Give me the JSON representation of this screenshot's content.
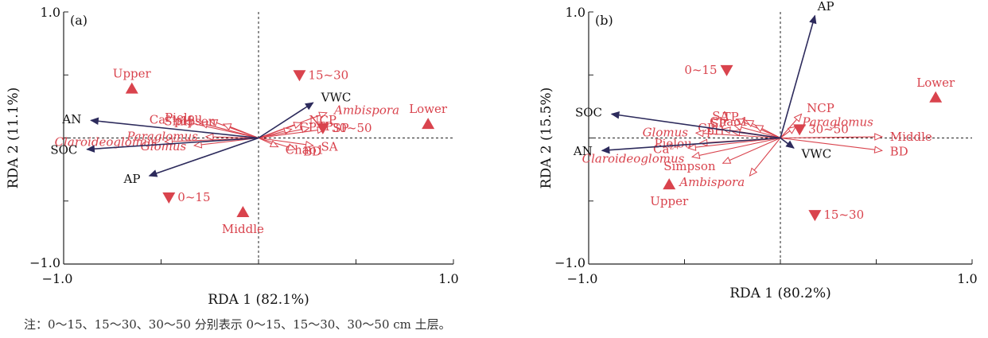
{
  "note": "注：0～15、15～30、30～50 分别表示 0～15、15～30、30～50 cm 土层。",
  "colors": {
    "env": "#2d2b5c",
    "species": "#d9434d",
    "axis": "#222222"
  },
  "chart_data": [
    {
      "type": "scatter",
      "panel_label": "(a)",
      "xlabel": "RDA 1 (82.1%)",
      "ylabel": "RDA 2 (11.1%)",
      "xlim": [
        -1.0,
        1.0
      ],
      "ylim": [
        -1.0,
        1.0
      ],
      "x_tick_labels": [
        "−1.0",
        "1.0"
      ],
      "y_tick_labels": [
        "1.0",
        "−1.0"
      ],
      "env_arrows": [
        {
          "name": "AN",
          "x": -0.86,
          "y": 0.14
        },
        {
          "name": "SOC",
          "x": -0.88,
          "y": -0.09
        },
        {
          "name": "AP",
          "x": -0.56,
          "y": -0.3
        },
        {
          "name": "VWC",
          "x": 0.28,
          "y": 0.28
        }
      ],
      "species_arrows": [
        {
          "name": "Ca²⁺",
          "x": -0.38,
          "y": 0.13,
          "italic": false
        },
        {
          "name": "pH",
          "x": -0.3,
          "y": 0.12,
          "italic": false
        },
        {
          "name": "Pielou",
          "x": -0.25,
          "y": 0.14,
          "italic": false
        },
        {
          "name": "Simpson",
          "x": -0.18,
          "y": 0.11,
          "italic": false
        },
        {
          "name": "Paraglomus",
          "x": -0.27,
          "y": 0.01,
          "italic": true
        },
        {
          "name": "Claroideoglomus",
          "x": -0.48,
          "y": -0.03,
          "italic": true
        },
        {
          "name": "Glomus",
          "x": -0.33,
          "y": -0.06,
          "italic": true
        },
        {
          "name": "Ambispora",
          "x": 0.35,
          "y": 0.2,
          "italic": true
        },
        {
          "name": "NCP",
          "x": 0.22,
          "y": 0.12,
          "italic": false
        },
        {
          "name": "CP",
          "x": 0.17,
          "y": 0.07,
          "italic": false
        },
        {
          "name": "TP",
          "x": 0.26,
          "y": 0.08,
          "italic": false
        },
        {
          "name": "SP",
          "x": 0.34,
          "y": 0.07,
          "italic": false
        },
        {
          "name": "SA",
          "x": 0.28,
          "y": -0.06,
          "italic": false
        },
        {
          "name": "BD",
          "x": 0.19,
          "y": -0.09,
          "italic": false
        },
        {
          "name": "Chao1",
          "x": 0.1,
          "y": -0.07,
          "italic": false
        }
      ],
      "sites": [
        {
          "name": "Upper",
          "x": -0.65,
          "y": 0.39,
          "shape": "up"
        },
        {
          "name": "Lower",
          "x": 0.87,
          "y": 0.11,
          "shape": "up"
        },
        {
          "name": "Middle",
          "x": -0.08,
          "y": -0.59,
          "shape": "up"
        },
        {
          "name": "15~30",
          "x": 0.21,
          "y": 0.5,
          "shape": "down"
        },
        {
          "name": "30~50",
          "x": 0.33,
          "y": 0.08,
          "shape": "down"
        },
        {
          "name": "0~15",
          "x": -0.46,
          "y": -0.47,
          "shape": "down"
        }
      ]
    },
    {
      "type": "scatter",
      "panel_label": "(b)",
      "xlabel": "RDA 1 (80.2%)",
      "ylabel": "RDA 2 (15.5%)",
      "xlim": [
        -1.0,
        1.0
      ],
      "ylim": [
        -1.0,
        1.0
      ],
      "x_tick_labels": [
        "−1.0",
        "1.0"
      ],
      "y_tick_labels": [
        "1.0",
        "−1.0"
      ],
      "env_arrows": [
        {
          "name": "AP",
          "x": 0.18,
          "y": 0.97
        },
        {
          "name": "SOC",
          "x": -0.88,
          "y": 0.19
        },
        {
          "name": "AN",
          "x": -0.93,
          "y": -0.1
        },
        {
          "name": "VWC",
          "x": 0.07,
          "y": -0.08
        }
      ],
      "species_arrows": [
        {
          "name": "SA",
          "x": -0.23,
          "y": 0.15,
          "italic": false
        },
        {
          "name": "TP",
          "x": -0.18,
          "y": 0.14,
          "italic": false
        },
        {
          "name": "SP",
          "x": -0.24,
          "y": 0.1,
          "italic": false
        },
        {
          "name": "Chao1",
          "x": -0.13,
          "y": 0.1,
          "italic": false
        },
        {
          "name": "NCP",
          "x": 0.11,
          "y": 0.19,
          "italic": false
        },
        {
          "name": "Paraglomus",
          "x": 0.08,
          "y": 0.09,
          "italic": true
        },
        {
          "name": "CP",
          "x": -0.3,
          "y": 0.07,
          "italic": false
        },
        {
          "name": "pH",
          "x": -0.25,
          "y": 0.05,
          "italic": false
        },
        {
          "name": "Glomus",
          "x": -0.44,
          "y": 0.04,
          "italic": true
        },
        {
          "name": "Pielou",
          "x": -0.42,
          "y": -0.04,
          "italic": false
        },
        {
          "name": "Ca²⁺",
          "x": -0.48,
          "y": -0.08,
          "italic": false
        },
        {
          "name": "Claroideoglomus",
          "x": -0.46,
          "y": -0.15,
          "italic": true
        },
        {
          "name": "Simpson",
          "x": -0.3,
          "y": -0.2,
          "italic": false
        },
        {
          "name": "Ambispora",
          "x": -0.16,
          "y": -0.3,
          "italic": true
        },
        {
          "name": "Middle",
          "x": 0.53,
          "y": 0.01,
          "italic": false
        },
        {
          "name": "BD",
          "x": 0.53,
          "y": -0.1,
          "italic": false
        }
      ],
      "sites": [
        {
          "name": "Lower",
          "x": 0.81,
          "y": 0.32,
          "shape": "up"
        },
        {
          "name": "Upper",
          "x": -0.58,
          "y": -0.37,
          "shape": "up"
        },
        {
          "name": "0~15",
          "x": -0.28,
          "y": 0.54,
          "shape": "down"
        },
        {
          "name": "30~50",
          "x": 0.1,
          "y": 0.07,
          "shape": "down"
        },
        {
          "name": "15~30",
          "x": 0.18,
          "y": -0.61,
          "shape": "down"
        }
      ]
    }
  ]
}
